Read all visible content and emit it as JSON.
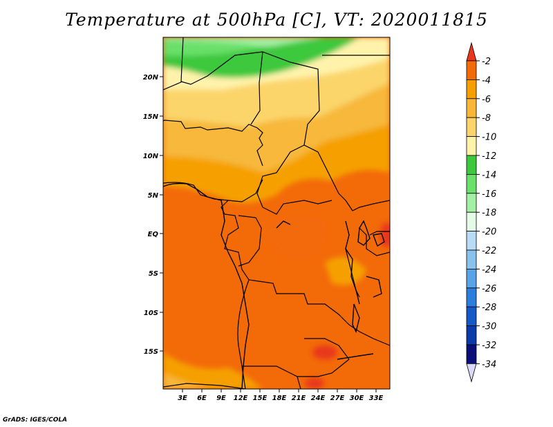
{
  "title": "Temperature at 500hPa [C], VT: 2020011815",
  "credit": "GrADS: IGES/COLA",
  "map": {
    "lat_labels": [
      "20N",
      "15N",
      "10N",
      "5N",
      "EQ",
      "5S",
      "10S",
      "15S"
    ],
    "lon_labels": [
      "3E",
      "6E",
      "9E",
      "12E",
      "15E",
      "18E",
      "21E",
      "24E",
      "27E",
      "30E",
      "33E"
    ]
  },
  "colorbar": {
    "labels": [
      "-2",
      "-4",
      "-6",
      "-8",
      "-10",
      "-12",
      "-14",
      "-16",
      "-18",
      "-20",
      "-22",
      "-24",
      "-26",
      "-28",
      "-30",
      "-32",
      "-34"
    ],
    "colors": [
      "#e8371e",
      "#f36a09",
      "#f5a000",
      "#f7b83a",
      "#fbd56b",
      "#fff3ac",
      "#3dc83d",
      "#6be06b",
      "#a4f0a4",
      "#e5fbe5",
      "#b8dcf5",
      "#8ac2ee",
      "#5aa3e6",
      "#2d7ddc",
      "#1558c8",
      "#0c3aa8",
      "#0a1078",
      "#dcd8f8"
    ]
  }
}
